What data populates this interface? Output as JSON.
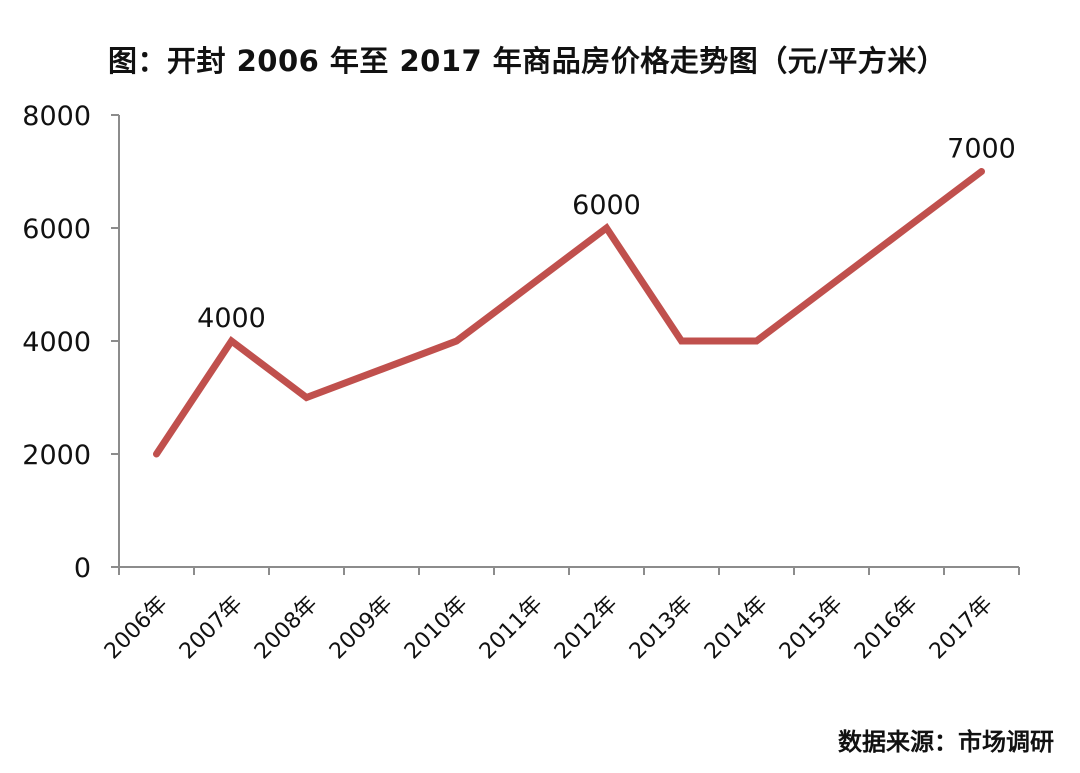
{
  "title": "图：开封 2006 年至 2017 年商品房价格走势图（元/平方米）",
  "source": "数据来源：市场调研",
  "colors": {
    "line": "#C0504D",
    "axis": "#8C8C8C",
    "text": "#111111"
  },
  "chart_data": {
    "type": "line",
    "title": "图：开封 2006 年至 2017 年商品房价格走势图（元/平方米）",
    "xlabel": "",
    "ylabel": "",
    "categories": [
      "2006年",
      "2007年",
      "2008年",
      "2009年",
      "2010年",
      "2011年",
      "2012年",
      "2013年",
      "2014年",
      "2015年",
      "2016年",
      "2017年"
    ],
    "series": [
      {
        "name": "商品房价格",
        "values": [
          2000,
          4000,
          3000,
          3500,
          4000,
          5000,
          6000,
          4000,
          4000,
          5000,
          6000,
          7000
        ]
      }
    ],
    "ylim": [
      0,
      8000
    ],
    "yticks": [
      0,
      2000,
      4000,
      6000,
      8000
    ],
    "data_labels": [
      {
        "category": "2007年",
        "value": 4000,
        "text": "4000"
      },
      {
        "category": "2012年",
        "value": 6000,
        "text": "6000"
      },
      {
        "category": "2017年",
        "value": 7000,
        "text": "7000"
      }
    ],
    "grid": false,
    "legend": null,
    "annotation": "数据来源：市场调研"
  }
}
